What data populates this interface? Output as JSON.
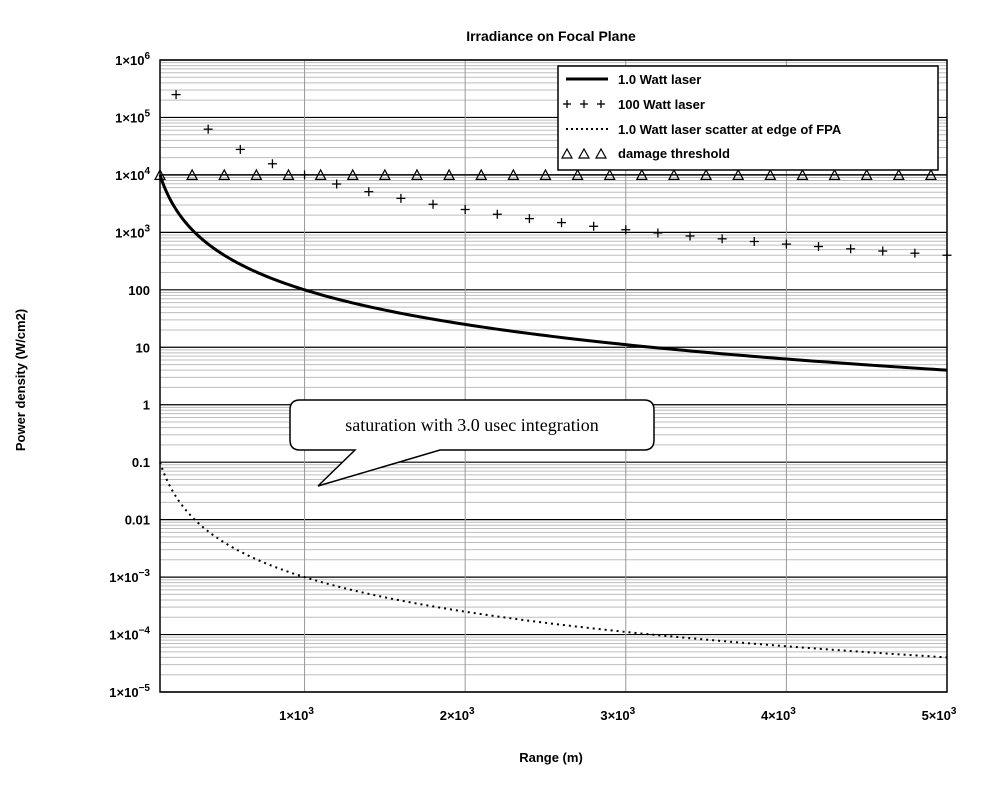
{
  "chart_data": {
    "type": "line",
    "title": "Irradiance on Focal Plane",
    "xlabel": "Range (m)",
    "ylabel": "Power density (W/cm2)",
    "xlim": [
      100,
      5000
    ],
    "ylim": [
      1e-05,
      1000000.0
    ],
    "yscale": "log",
    "grid": true,
    "legend_position": "top-right",
    "x_ticks": [
      {
        "value": 1000,
        "mant": "1×10",
        "exp": "3"
      },
      {
        "value": 2000,
        "mant": "2×10",
        "exp": "3"
      },
      {
        "value": 3000,
        "mant": "3×10",
        "exp": "3"
      },
      {
        "value": 4000,
        "mant": "4×10",
        "exp": "3"
      },
      {
        "value": 5000,
        "mant": "5×10",
        "exp": "3"
      }
    ],
    "y_ticks": [
      {
        "value": 1000000.0,
        "mant": "1×10",
        "exp": "6"
      },
      {
        "value": 100000.0,
        "mant": "1×10",
        "exp": "5"
      },
      {
        "value": 10000.0,
        "mant": "1×10",
        "exp": "4"
      },
      {
        "value": 1000.0,
        "mant": "1×10",
        "exp": "3"
      },
      {
        "value": 100,
        "mant": "100",
        "exp": ""
      },
      {
        "value": 10,
        "mant": "10",
        "exp": ""
      },
      {
        "value": 1,
        "mant": "1",
        "exp": ""
      },
      {
        "value": 0.1,
        "mant": "0.1",
        "exp": ""
      },
      {
        "value": 0.01,
        "mant": "0.01",
        "exp": ""
      },
      {
        "value": 0.001,
        "mant": "1×10",
        "exp": "−3"
      },
      {
        "value": 0.0001,
        "mant": "1×10",
        "exp": "−4"
      },
      {
        "value": 1e-05,
        "mant": "1×10",
        "exp": "−5"
      }
    ],
    "series": [
      {
        "name": "1.0 Watt laser",
        "style": "solid",
        "x": [
          100,
          200,
          300,
          400,
          500,
          600,
          800,
          1000,
          1200,
          1500,
          2000,
          2500,
          3000,
          3500,
          4000,
          4500,
          5000
        ],
        "values": [
          10000,
          2500,
          1111,
          625,
          400,
          278,
          156,
          100,
          69.4,
          44.4,
          25,
          16,
          11.1,
          8.16,
          6.25,
          4.94,
          4
        ]
      },
      {
        "name": "100 Watt laser",
        "style": "plus",
        "x": [
          200,
          400,
          600,
          800,
          1000,
          1200,
          1400,
          1600,
          1800,
          2000,
          2200,
          2400,
          2600,
          2800,
          3000,
          3200,
          3400,
          3600,
          3800,
          4000,
          4200,
          4400,
          4600,
          4800,
          5000
        ],
        "values": [
          250000,
          62500,
          27778,
          15625,
          10000,
          6944,
          5102,
          3906,
          3086,
          2500,
          2066,
          1736,
          1479,
          1276,
          1111,
          977,
          865,
          772,
          693,
          625,
          567,
          517,
          473,
          434,
          400
        ]
      },
      {
        "name": "1.0 Watt laser scatter at edge of FPA",
        "style": "dotted",
        "x": [
          100,
          200,
          300,
          400,
          500,
          600,
          800,
          1000,
          1200,
          1500,
          2000,
          2500,
          3000,
          3500,
          4000,
          4500,
          5000
        ],
        "values": [
          0.1,
          0.025,
          0.0111,
          0.00625,
          0.004,
          0.00278,
          0.00156,
          0.001,
          0.000694,
          0.000444,
          0.00025,
          0.00016,
          0.000111,
          8.16e-05,
          6.25e-05,
          4.94e-05,
          4e-05
        ]
      },
      {
        "name": "damage threshold",
        "style": "triangle",
        "x": [
          100,
          300,
          500,
          700,
          900,
          1100,
          1300,
          1500,
          1700,
          1900,
          2100,
          2300,
          2500,
          2700,
          2900,
          3100,
          3300,
          3500,
          3700,
          3900,
          4100,
          4300,
          4500,
          4700,
          4900
        ],
        "values": [
          10000,
          10000,
          10000,
          10000,
          10000,
          10000,
          10000,
          10000,
          10000,
          10000,
          10000,
          10000,
          10000,
          10000,
          10000,
          10000,
          10000,
          10000,
          10000,
          10000,
          10000,
          10000,
          10000,
          10000,
          10000
        ]
      }
    ],
    "annotation": "saturation with 3.0 usec integration"
  }
}
